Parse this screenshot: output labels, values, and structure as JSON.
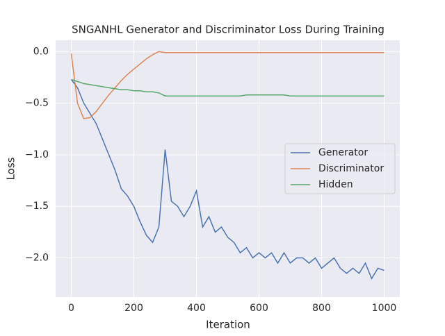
{
  "chart_data": {
    "type": "line",
    "title": "SNGANHL Generator and Discriminator Loss During Training",
    "xlabel": "Iteration",
    "ylabel": "Loss",
    "x": [
      0,
      20,
      40,
      60,
      80,
      100,
      120,
      140,
      160,
      180,
      200,
      220,
      240,
      260,
      280,
      300,
      320,
      340,
      360,
      380,
      400,
      420,
      440,
      460,
      480,
      500,
      520,
      540,
      560,
      580,
      600,
      620,
      640,
      660,
      680,
      700,
      720,
      740,
      760,
      780,
      800,
      820,
      840,
      860,
      880,
      900,
      920,
      940,
      960,
      980,
      1000
    ],
    "series": [
      {
        "name": "Generator",
        "color": "#4c72b0",
        "values": [
          -0.27,
          -0.35,
          -0.5,
          -0.6,
          -0.7,
          -0.85,
          -1.0,
          -1.15,
          -1.33,
          -1.4,
          -1.5,
          -1.65,
          -1.78,
          -1.85,
          -1.7,
          -0.95,
          -1.45,
          -1.5,
          -1.6,
          -1.5,
          -1.35,
          -1.7,
          -1.6,
          -1.75,
          -1.7,
          -1.8,
          -1.85,
          -1.95,
          -1.9,
          -2.0,
          -1.95,
          -2.0,
          -1.95,
          -2.05,
          -1.95,
          -2.05,
          -2.0,
          -2.0,
          -2.05,
          -2.0,
          -2.1,
          -2.05,
          -2.0,
          -2.1,
          -2.15,
          -2.1,
          -2.15,
          -2.05,
          -2.2,
          -2.1,
          -2.12
        ]
      },
      {
        "name": "Discriminator",
        "color": "#dd8452",
        "values": [
          -0.02,
          -0.5,
          -0.65,
          -0.64,
          -0.58,
          -0.5,
          -0.42,
          -0.35,
          -0.28,
          -0.22,
          -0.17,
          -0.12,
          -0.07,
          -0.03,
          0.0,
          -0.01,
          -0.01,
          -0.01,
          -0.01,
          -0.01,
          -0.01,
          -0.01,
          -0.01,
          -0.01,
          -0.01,
          -0.01,
          -0.01,
          -0.01,
          -0.01,
          -0.01,
          -0.01,
          -0.01,
          -0.01,
          -0.01,
          -0.01,
          -0.01,
          -0.01,
          -0.01,
          -0.01,
          -0.01,
          -0.01,
          -0.01,
          -0.01,
          -0.01,
          -0.01,
          -0.01,
          -0.01,
          -0.01,
          -0.01,
          -0.01,
          -0.01
        ]
      },
      {
        "name": "Hidden",
        "color": "#55a868",
        "values": [
          -0.27,
          -0.29,
          -0.31,
          -0.32,
          -0.33,
          -0.34,
          -0.35,
          -0.36,
          -0.37,
          -0.37,
          -0.38,
          -0.38,
          -0.39,
          -0.39,
          -0.4,
          -0.43,
          -0.43,
          -0.43,
          -0.43,
          -0.43,
          -0.43,
          -0.43,
          -0.43,
          -0.43,
          -0.43,
          -0.43,
          -0.43,
          -0.43,
          -0.42,
          -0.42,
          -0.42,
          -0.42,
          -0.42,
          -0.42,
          -0.42,
          -0.43,
          -0.43,
          -0.43,
          -0.43,
          -0.43,
          -0.43,
          -0.43,
          -0.43,
          -0.43,
          -0.43,
          -0.43,
          -0.43,
          -0.43,
          -0.43,
          -0.43,
          -0.43
        ]
      }
    ],
    "xlim": [
      -50,
      1050
    ],
    "ylim": [
      -2.38,
      0.11
    ],
    "xticks": [
      0,
      200,
      400,
      600,
      800,
      1000
    ],
    "yticks": [
      {
        "value": 0,
        "label": "0.0"
      },
      {
        "value": -0.5,
        "label": "−0.5"
      },
      {
        "value": -1,
        "label": "−1.0"
      },
      {
        "value": -1.5,
        "label": "−1.5"
      },
      {
        "value": -2,
        "label": "−2.0"
      }
    ],
    "grid": true,
    "legend": "center right"
  }
}
